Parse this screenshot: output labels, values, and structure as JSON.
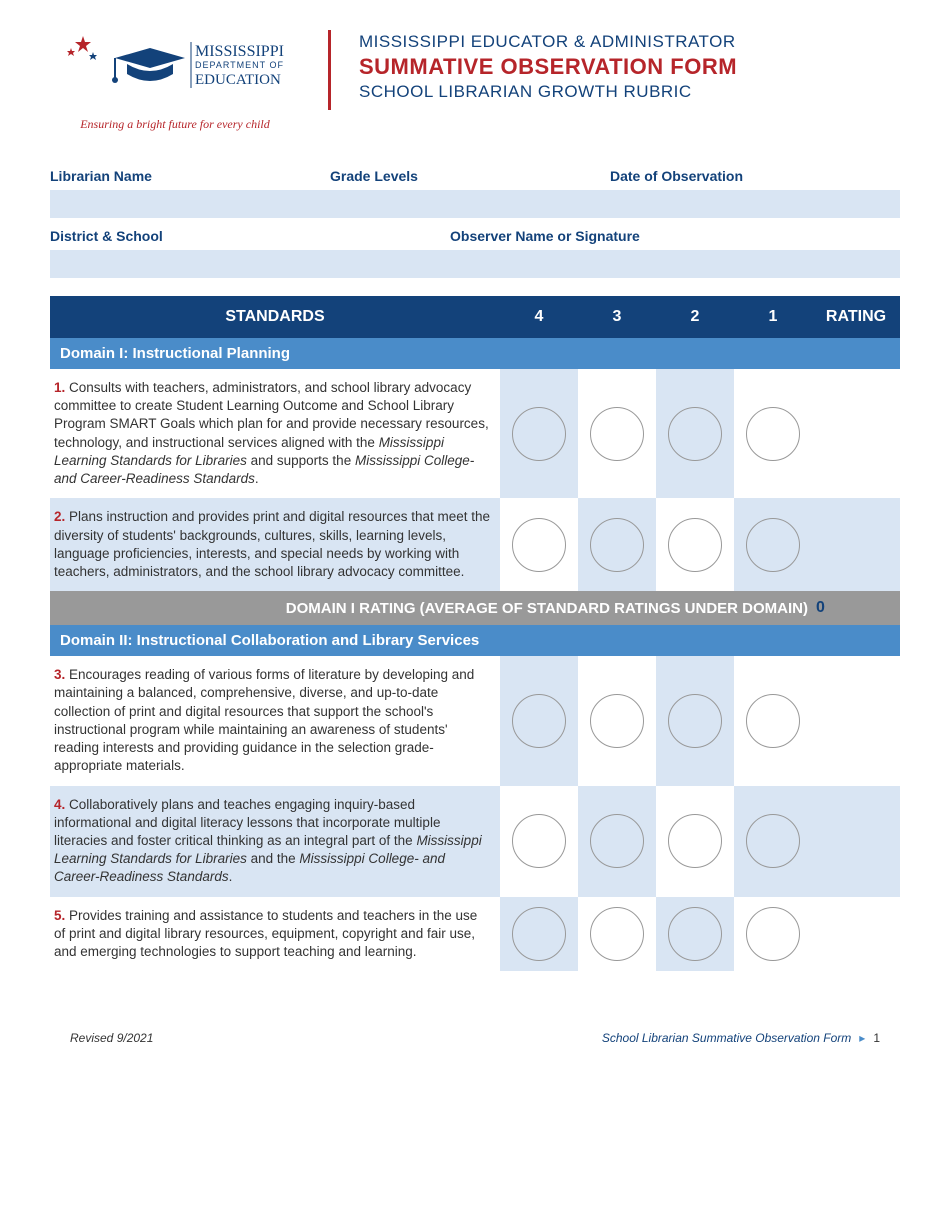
{
  "header": {
    "logo_text_top": "MISSISSIPPI",
    "logo_text_mid": "DEPARTMENT OF",
    "logo_text_bot": "EDUCATION",
    "tagline": "Ensuring a bright future for every child",
    "title_line1": "MISSISSIPPI EDUCATOR & ADMINISTRATOR",
    "title_line2": "SUMMATIVE OBSERVATION FORM",
    "title_line3": "SCHOOL LIBRARIAN GROWTH RUBRIC"
  },
  "info_fields": {
    "librarian_name": "Librarian Name",
    "grade_levels": "Grade Levels",
    "date_of_observation": "Date of Observation",
    "district_school": "District & School",
    "observer_name": "Observer Name or Signature"
  },
  "table_header": {
    "standards": "STANDARDS",
    "col4": "4",
    "col3": "3",
    "col2": "2",
    "col1": "1",
    "rating": "RATING"
  },
  "domains": [
    {
      "title": "Domain I: Instructional Planning",
      "standards": [
        {
          "num": "1.",
          "text_before": " Consults with teachers, administrators, and school library advocacy committee to create Student Learning Outcome and School Library Program SMART Goals which plan for and provide necessary resources, technology, and instructional services aligned with the ",
          "ital1": "Mississippi Learning Standards for Libraries",
          "text_mid": " and supports the ",
          "ital2": "Mississippi College- and Career-Readiness Standards",
          "text_after": "."
        },
        {
          "num": "2.",
          "text_before": " Plans instruction and provides print and digital resources that meet the diversity of students' backgrounds, cultures, skills, learning levels, language proficiencies, interests, and special needs by working with teachers, administrators, and the school library advocacy committee.",
          "ital1": "",
          "text_mid": "",
          "ital2": "",
          "text_after": ""
        }
      ],
      "rating_label": "DOMAIN I RATING (AVERAGE OF STANDARD RATINGS UNDER DOMAIN)",
      "rating_value": "0"
    },
    {
      "title": "Domain II: Instructional Collaboration and Library Services",
      "standards": [
        {
          "num": "3.",
          "text_before": " Encourages reading of various forms of literature by developing and maintaining a balanced, comprehensive, diverse, and up-to-date collection of print and digital resources that support the school's instructional program while maintaining an awareness of students' reading interests and providing guidance in the selection grade-appropriate materials.",
          "ital1": "",
          "text_mid": "",
          "ital2": "",
          "text_after": ""
        },
        {
          "num": "4.",
          "text_before": " Collaboratively plans and teaches engaging inquiry-based informational and digital literacy lessons that incorporate multiple literacies and foster critical thinking as an integral part of the ",
          "ital1": "Mississippi Learning Standards for Libraries",
          "text_mid": " and the ",
          "ital2": "Mississippi College- and Career-Readiness Standards",
          "text_after": "."
        },
        {
          "num": "5.",
          "text_before": " Provides training and assistance to students and teachers in the use of print and digital library resources, equipment, copyright and fair use, and emerging technologies to support teaching and learning.",
          "ital1": "",
          "text_mid": "",
          "ital2": "",
          "text_after": ""
        }
      ],
      "rating_label": "",
      "rating_value": ""
    }
  ],
  "footer": {
    "revised": "Revised 9/2021",
    "doc_title": "School Librarian Summative Observation Form",
    "page": "1"
  },
  "colors": {
    "navy": "#13427a",
    "red": "#b6252a",
    "blue_mid": "#4a8cc9",
    "blue_light": "#d9e5f3",
    "gray": "#999999"
  }
}
